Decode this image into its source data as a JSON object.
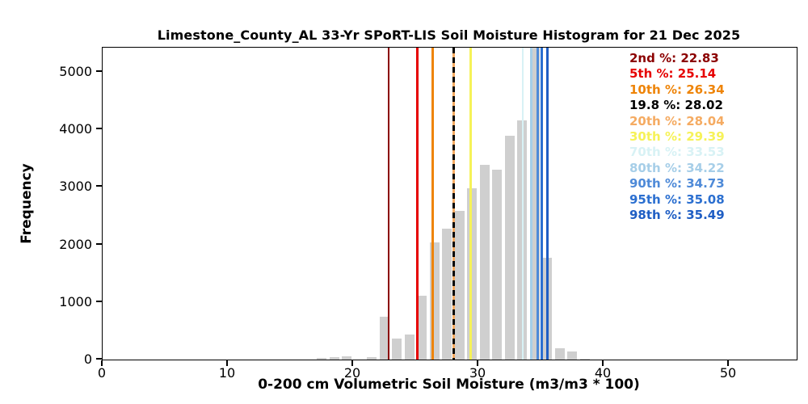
{
  "figure": {
    "title": "Limestone_County_AL 33-Yr SPoRT-LIS Soil Moisture Histogram for 21 Dec 2025",
    "xlabel": "0-200 cm Volumetric Soil Moisture (m3/m3 * 100)",
    "ylabel": "Frequency"
  },
  "chart_data": {
    "type": "bar",
    "subtype": "histogram",
    "title": "Limestone_County_AL 33-Yr SPoRT-LIS Soil Moisture Histogram for 21 Dec 2025",
    "xlabel": "0-200 cm Volumetric Soil Moisture (m3/m3 * 100)",
    "ylabel": "Frequency",
    "grid": false,
    "bar_color": "#cfcfcf",
    "bin_width": 1,
    "bin_centers": [
      17.5,
      18.5,
      19.5,
      20.5,
      21.5,
      22.5,
      23.5,
      24.5,
      25.5,
      26.5,
      27.5,
      28.5,
      29.5,
      30.5,
      31.5,
      32.5,
      33.5,
      34.5,
      35.5,
      36.5,
      37.5,
      38.5
    ],
    "frequencies": [
      25,
      40,
      55,
      0,
      45,
      740,
      370,
      440,
      1110,
      2030,
      2280,
      2590,
      2980,
      3380,
      3300,
      3890,
      4150,
      5420,
      1775,
      200,
      140,
      20
    ],
    "clipped_bar_note": "bar at bin 34.5 reaches the top of the axes (>= 5420)",
    "xlim": [
      0,
      55.4
    ],
    "ylim": [
      0,
      5420
    ],
    "xticks": [
      0,
      10,
      20,
      30,
      40,
      50
    ],
    "yticks": [
      0,
      1000,
      2000,
      3000,
      4000,
      5000
    ],
    "legend_position": "upper right, colored text only",
    "percentile_lines": [
      {
        "label": "2nd %: 22.83",
        "percentile": "2nd",
        "value": 22.83,
        "color": "#8b0000",
        "style": "solid",
        "width": 2.5
      },
      {
        "label": "5th %: 25.14",
        "percentile": "5th",
        "value": 25.14,
        "color": "#e60000",
        "style": "solid",
        "width": 2.5
      },
      {
        "label": "10th %: 26.34",
        "percentile": "10th",
        "value": 26.34,
        "color": "#ee8408",
        "style": "solid",
        "width": 2.5
      },
      {
        "label": "19.8 %: 28.02",
        "percentile": "19.8",
        "value": 28.02,
        "color": "#000000",
        "style": "dashed",
        "width": 3.4
      },
      {
        "label": "20th %: 28.04",
        "percentile": "20th",
        "value": 28.04,
        "color": "#f5ab62",
        "style": "solid",
        "width": 3.0
      },
      {
        "label": "30th %: 29.39",
        "percentile": "30th",
        "value": 29.39,
        "color": "#f6f258",
        "style": "solid",
        "width": 2.5
      },
      {
        "label": "70th %: 33.53",
        "percentile": "70th",
        "value": 33.53,
        "color": "#d8f2f5",
        "style": "solid",
        "width": 2.5
      },
      {
        "label": "80th %: 34.22",
        "percentile": "80th",
        "value": 34.22,
        "color": "#a6cee8",
        "style": "solid",
        "width": 3.0
      },
      {
        "label": "90th %: 34.73",
        "percentile": "90th",
        "value": 34.73,
        "color": "#4e8ad8",
        "style": "solid",
        "width": 3.0
      },
      {
        "label": "95th %: 35.08",
        "percentile": "95th",
        "value": 35.08,
        "color": "#2b6fd0",
        "style": "solid",
        "width": 3.0
      },
      {
        "label": "98th %: 35.49",
        "percentile": "98th",
        "value": 35.49,
        "color": "#1f5ec4",
        "style": "solid",
        "width": 3.0
      }
    ]
  }
}
